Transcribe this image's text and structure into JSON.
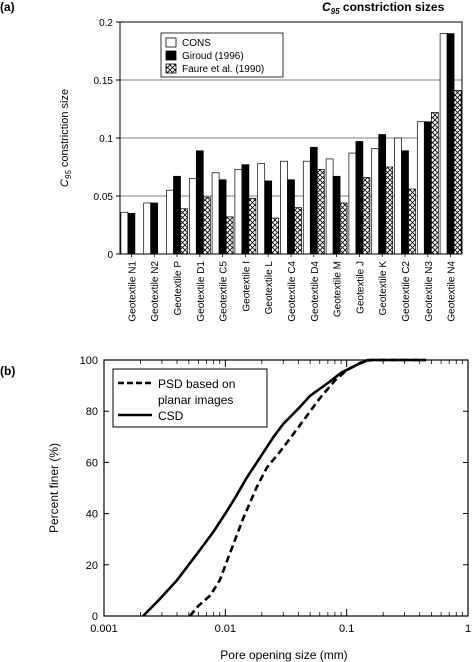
{
  "panels": {
    "a": {
      "label": "(a)",
      "title_main": "C",
      "title_sub": "95",
      "title_rest": " constriction sizes"
    },
    "b": {
      "label": "(b)"
    }
  },
  "chart_data": [
    {
      "type": "bar",
      "ylabel_main": "C",
      "ylabel_sub": "95",
      "ylabel_rest": " constriction size",
      "ylim": [
        0,
        0.2
      ],
      "yticks": [
        "0",
        "0.05",
        "0.1",
        "0.15",
        "0.2"
      ],
      "ytick_values": [
        0,
        0.05,
        0.1,
        0.15,
        0.2
      ],
      "legend_position": "top-left",
      "categories": [
        "Geotextile N1",
        "Geotextile N2",
        "Geotextile P",
        "Geotextile D1",
        "Geotextile C5",
        "Geotextile I",
        "Geotextile L",
        "Geotextile C4",
        "Geotextile D4",
        "Geotextile M",
        "Geotextile J",
        "Geotextile K",
        "Geotextile C2",
        "Geotextile N3",
        "Geotextile N4"
      ],
      "series": [
        {
          "name": "CONS",
          "fill": "#ffffff",
          "pattern": "none",
          "values": [
            0.036,
            0.044,
            0.055,
            0.065,
            0.07,
            0.073,
            0.078,
            0.08,
            0.08,
            0.082,
            0.087,
            0.091,
            0.1,
            0.114,
            0.19
          ]
        },
        {
          "name": "Giroud (1996)",
          "fill": "#000000",
          "pattern": "none",
          "values": [
            0.035,
            0.044,
            0.067,
            0.089,
            0.064,
            0.077,
            0.063,
            0.064,
            0.092,
            0.067,
            0.097,
            0.103,
            0.089,
            0.114,
            0.19
          ]
        },
        {
          "name": "Faure et al. (1990)",
          "fill": "#ffffff",
          "pattern": "crosshatch",
          "values": [
            null,
            null,
            0.039,
            0.049,
            0.032,
            0.048,
            0.031,
            0.04,
            0.073,
            0.044,
            0.066,
            0.075,
            0.056,
            0.122,
            0.141
          ]
        }
      ]
    },
    {
      "type": "line",
      "xscale": "log",
      "xlabel": "Pore opening size (mm)",
      "ylabel": "Percent finer (%)",
      "xlim": [
        0.001,
        1
      ],
      "ylim": [
        0,
        100
      ],
      "xticks": [
        "0.001",
        "0.01",
        "0.1",
        "1"
      ],
      "xtick_values": [
        0.001,
        0.01,
        0.1,
        1
      ],
      "yticks": [
        "0",
        "20",
        "40",
        "60",
        "80",
        "100"
      ],
      "ytick_values": [
        0,
        20,
        40,
        60,
        80,
        100
      ],
      "legend_position": "top-left",
      "series": [
        {
          "name_lines": [
            "PSD based on",
            "planar images"
          ],
          "style": "dashed",
          "x": [
            0.0051,
            0.006,
            0.0075,
            0.009,
            0.011,
            0.014,
            0.018,
            0.022,
            0.028,
            0.035,
            0.045,
            0.06,
            0.08,
            0.1,
            0.13,
            0.16,
            0.2,
            0.3,
            0.45
          ],
          "y": [
            0,
            4,
            8,
            14,
            25,
            38,
            50,
            58,
            64,
            70,
            77,
            85,
            92,
            96,
            99,
            100,
            100,
            100,
            100
          ]
        },
        {
          "name_lines": [
            "CSD"
          ],
          "style": "solid",
          "x": [
            0.0021,
            0.0028,
            0.004,
            0.006,
            0.008,
            0.01,
            0.012,
            0.015,
            0.02,
            0.025,
            0.03,
            0.04,
            0.05,
            0.07,
            0.09,
            0.12,
            0.15,
            0.2,
            0.3,
            0.45
          ],
          "y": [
            0,
            6,
            14,
            25,
            33,
            40,
            46,
            54,
            63,
            70,
            75,
            81,
            86,
            91,
            95,
            98,
            100,
            100,
            100,
            100
          ]
        }
      ]
    }
  ]
}
